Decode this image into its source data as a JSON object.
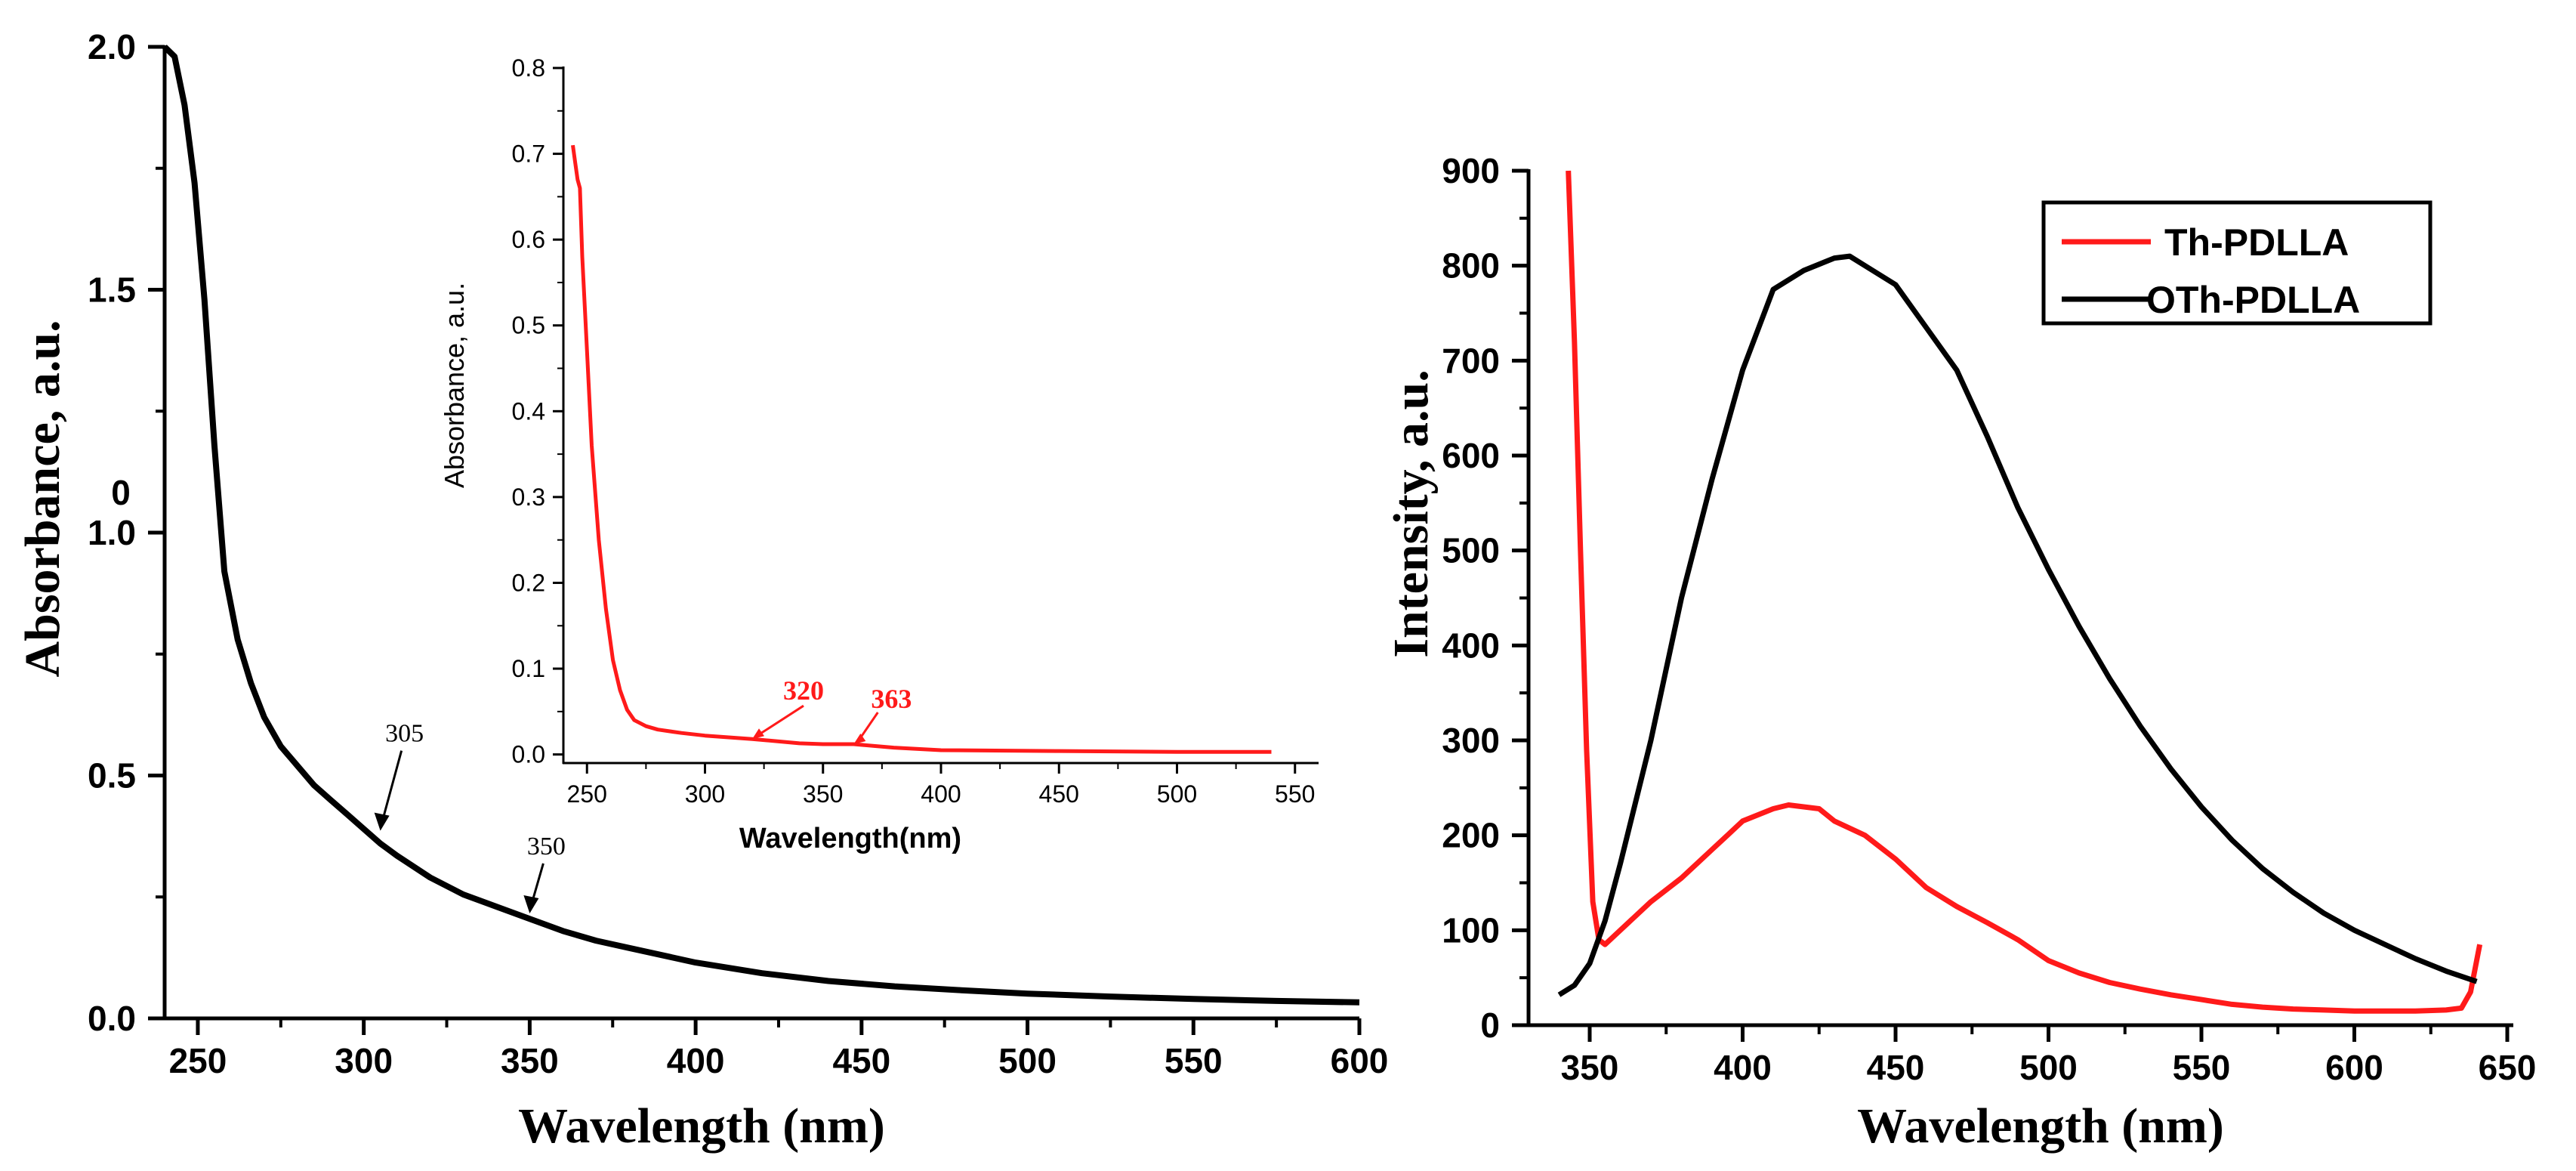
{
  "colors": {
    "black": "#000000",
    "red": "#ff1a1a"
  },
  "chart_data": [
    {
      "id": "absorbance_main",
      "type": "line",
      "title": "",
      "xlabel": "Wavelength (nm)",
      "ylabel": "Absorbance, a.u.",
      "xlim": [
        240,
        600
      ],
      "ylim": [
        0.0,
        2.0
      ],
      "xticks": [
        250,
        300,
        350,
        400,
        450,
        500,
        550,
        600
      ],
      "yticks": [
        0.0,
        0.5,
        1.0,
        1.5,
        2.0
      ],
      "ytick_labels": [
        "0.0",
        "0.5",
        "1.0",
        "1.5",
        "2.0"
      ],
      "stray_text": "0",
      "series": [
        {
          "name": "absorbance",
          "color": "#000000",
          "x": [
            240,
            243,
            246,
            249,
            252,
            255,
            258,
            262,
            266,
            270,
            275,
            280,
            285,
            290,
            295,
            300,
            305,
            310,
            320,
            330,
            340,
            350,
            360,
            370,
            380,
            400,
            420,
            440,
            460,
            480,
            500,
            525,
            550,
            575,
            600
          ],
          "y": [
            2.0,
            1.98,
            1.88,
            1.72,
            1.48,
            1.18,
            0.92,
            0.78,
            0.69,
            0.62,
            0.56,
            0.52,
            0.48,
            0.45,
            0.42,
            0.39,
            0.36,
            0.335,
            0.29,
            0.255,
            0.23,
            0.205,
            0.18,
            0.16,
            0.145,
            0.115,
            0.093,
            0.077,
            0.066,
            0.058,
            0.051,
            0.045,
            0.04,
            0.036,
            0.033
          ]
        }
      ],
      "annotations": [
        {
          "text": "305",
          "x": 305,
          "y": 0.38
        },
        {
          "text": "350",
          "x": 350,
          "y": 0.21
        }
      ]
    },
    {
      "id": "absorbance_inset",
      "type": "line",
      "title": "",
      "xlabel": "Wavelength(nm)",
      "ylabel": "Absorbance,  a.u.",
      "xlim": [
        240,
        560
      ],
      "ylim": [
        -0.01,
        0.8
      ],
      "xticks": [
        250,
        300,
        350,
        400,
        450,
        500,
        550
      ],
      "yticks": [
        0.0,
        0.1,
        0.2,
        0.3,
        0.4,
        0.5,
        0.6,
        0.7,
        0.8
      ],
      "ytick_labels": [
        "0.0",
        "0.1",
        "0.2",
        "0.3",
        "0.4",
        "0.5",
        "0.6",
        "0.7",
        "0.8"
      ],
      "series": [
        {
          "name": "absorbance",
          "color": "#ff1a1a",
          "x": [
            244,
            245,
            246,
            247,
            248,
            250,
            252,
            255,
            258,
            261,
            264,
            267,
            270,
            275,
            280,
            290,
            300,
            320,
            340,
            350,
            363,
            380,
            400,
            450,
            500,
            540
          ],
          "y": [
            0.71,
            0.69,
            0.67,
            0.66,
            0.58,
            0.47,
            0.36,
            0.25,
            0.17,
            0.11,
            0.075,
            0.052,
            0.04,
            0.033,
            0.029,
            0.025,
            0.022,
            0.018,
            0.013,
            0.012,
            0.012,
            0.008,
            0.005,
            0.004,
            0.003,
            0.003
          ]
        }
      ],
      "annotations": [
        {
          "text": "320",
          "x": 320,
          "y": 0.018
        },
        {
          "text": "363",
          "x": 363,
          "y": 0.012
        }
      ]
    },
    {
      "id": "fluorescence",
      "type": "line",
      "title": "",
      "xlabel": "Wavelength (nm)",
      "ylabel": "Intensity, a.u.",
      "xlim": [
        330,
        650
      ],
      "ylim": [
        0,
        900
      ],
      "xticks": [
        350,
        400,
        450,
        500,
        550,
        600,
        650
      ],
      "yticks": [
        0,
        100,
        200,
        300,
        400,
        500,
        600,
        700,
        800,
        900
      ],
      "legend_position": "top-right",
      "series": [
        {
          "name": "Th-PDLLA",
          "color": "#ff1a1a",
          "x": [
            343,
            345,
            347,
            349,
            351,
            353,
            355,
            360,
            370,
            380,
            390,
            395,
            400,
            410,
            415,
            420,
            425,
            430,
            440,
            450,
            460,
            470,
            480,
            490,
            500,
            510,
            520,
            530,
            540,
            550,
            560,
            570,
            580,
            590,
            600,
            610,
            620,
            630,
            635,
            638,
            641
          ],
          "y": [
            900,
            720,
            500,
            290,
            130,
            90,
            85,
            100,
            130,
            155,
            185,
            200,
            215,
            228,
            232,
            230,
            228,
            215,
            200,
            175,
            145,
            125,
            108,
            90,
            68,
            55,
            45,
            38,
            32,
            27,
            22,
            19,
            17,
            16,
            15,
            15,
            15,
            16,
            18,
            35,
            85
          ]
        },
        {
          "name": "OTh-PDLLA",
          "color": "#000000",
          "x": [
            340,
            345,
            350,
            355,
            360,
            370,
            380,
            390,
            400,
            410,
            420,
            430,
            435,
            440,
            450,
            460,
            470,
            480,
            490,
            500,
            510,
            520,
            530,
            540,
            550,
            560,
            570,
            580,
            590,
            600,
            610,
            620,
            630,
            640
          ],
          "y": [
            32,
            42,
            65,
            110,
            170,
            300,
            450,
            575,
            690,
            775,
            795,
            808,
            810,
            800,
            780,
            735,
            690,
            620,
            545,
            480,
            420,
            365,
            315,
            270,
            230,
            195,
            165,
            140,
            118,
            100,
            85,
            70,
            57,
            46
          ]
        }
      ]
    }
  ]
}
